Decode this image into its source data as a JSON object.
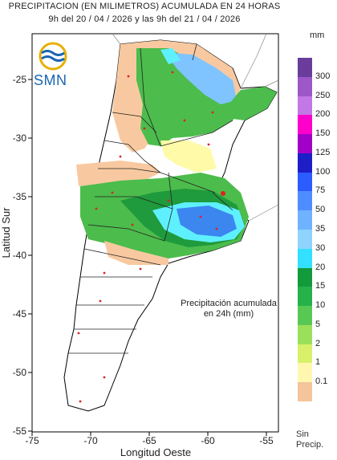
{
  "header": {
    "title": "PRECIPITACION (EN MILIMETROS) ACUMULADA EN 24 HORAS",
    "subtitle": "9h del 20 / 04 / 2026  y las 9h del 21 / 04 / 2026"
  },
  "logo": {
    "text": "SMN",
    "color": "#1a66b3"
  },
  "axes": {
    "xlabel": "Longitud Oeste",
    "ylabel": "Latitud Sur",
    "xticks": [
      "-75",
      "-70",
      "-65",
      "-60",
      "-55"
    ],
    "yticks": [
      "-25",
      "-30",
      "-35",
      "-40",
      "-45",
      "-50",
      "-55"
    ]
  },
  "annotation": {
    "line1": "Precipitación acumulada",
    "line2": "en 24h (mm)"
  },
  "legend": {
    "unit": "mm",
    "no_data_line1": "Sin",
    "no_data_line2": "Precip.",
    "labels": [
      "300",
      "250",
      "200",
      "150",
      "125",
      "100",
      "75",
      "50",
      "35",
      "30",
      "20",
      "15",
      "10",
      "5",
      "2",
      "1",
      "0.1"
    ],
    "colors": [
      "#6a3d9a",
      "#9c57c8",
      "#c278e6",
      "#ff00cc",
      "#a000c8",
      "#1e1ec8",
      "#2b5cff",
      "#4e8dff",
      "#6fb2ff",
      "#8fd3ff",
      "#33e0ff",
      "#139a3a",
      "#27b14b",
      "#58c855",
      "#9be05a",
      "#d8f06a",
      "#fff7b0",
      "#f4c49a"
    ]
  },
  "colors": {
    "dry": "#f8c9a0",
    "light": "#fffaa8",
    "green_light": "#a8e060",
    "green": "#4cbc4c",
    "green_dark": "#1f9a3c",
    "cyan": "#5ff0ff",
    "blue_light": "#7fc4ff",
    "blue": "#3c86f0"
  }
}
